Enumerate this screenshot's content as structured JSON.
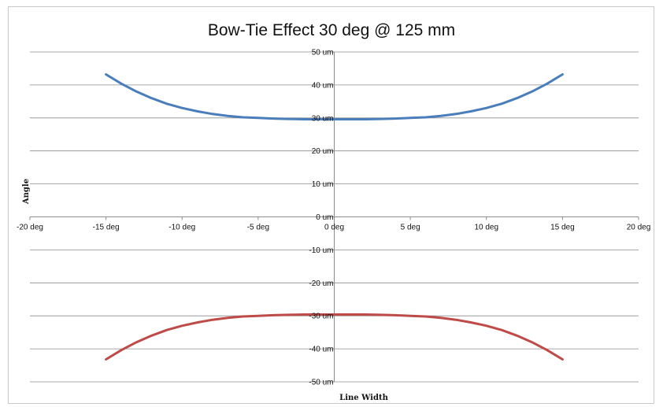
{
  "chart_data": {
    "type": "line",
    "title": "Bow-Tie Effect 30 deg @ 125 mm",
    "xlabel": "Line Width",
    "ylabel": "Angle",
    "xlim": [
      -20,
      20
    ],
    "ylim": [
      -50,
      50
    ],
    "x_ticks": [
      -20,
      -15,
      -10,
      -5,
      0,
      5,
      10,
      15,
      20
    ],
    "x_tick_labels": [
      "-20 deg",
      "-15 deg",
      "-10 deg",
      "-5 deg",
      "0 deg",
      "5 deg",
      "10 deg",
      "15 deg",
      "20 deg"
    ],
    "y_ticks": [
      50,
      40,
      30,
      20,
      10,
      0,
      -10,
      -20,
      -30,
      -40,
      -50
    ],
    "y_tick_labels": [
      "50 um",
      "40 um",
      "30 um",
      "20 um",
      "10 um",
      "0 um",
      "-10 um",
      "-20 um",
      "-30 um",
      "-40 um",
      "-50 um"
    ],
    "grid": "horizontal",
    "legend": "none",
    "series": [
      {
        "color": "#4a7ebb",
        "x": [
          -15,
          -14,
          -13,
          -12,
          -11,
          -10,
          -9,
          -8,
          -7,
          -6,
          -5,
          -4,
          -3,
          -2,
          -1,
          0,
          1,
          2,
          3,
          4,
          5,
          6,
          7,
          8,
          9,
          10,
          11,
          12,
          13,
          14,
          15
        ],
        "y": [
          43.2,
          40.4,
          38.0,
          36.0,
          34.3,
          33.0,
          32.0,
          31.2,
          30.6,
          30.2,
          30.0,
          29.8,
          29.7,
          29.6,
          29.6,
          29.6,
          29.6,
          29.6,
          29.7,
          29.8,
          30.0,
          30.2,
          30.6,
          31.2,
          32.0,
          33.0,
          34.3,
          36.0,
          38.0,
          40.4,
          43.2
        ]
      },
      {
        "color": "#be4b48",
        "x": [
          -15,
          -14,
          -13,
          -12,
          -11,
          -10,
          -9,
          -8,
          -7,
          -6,
          -5,
          -4,
          -3,
          -2,
          -1,
          0,
          1,
          2,
          3,
          4,
          5,
          6,
          7,
          8,
          9,
          10,
          11,
          12,
          13,
          14,
          15
        ],
        "y": [
          -43.2,
          -40.4,
          -38.0,
          -36.0,
          -34.3,
          -33.0,
          -32.0,
          -31.2,
          -30.6,
          -30.2,
          -30.0,
          -29.8,
          -29.7,
          -29.6,
          -29.6,
          -29.6,
          -29.6,
          -29.6,
          -29.7,
          -29.8,
          -30.0,
          -30.2,
          -30.6,
          -31.2,
          -32.0,
          -33.0,
          -34.3,
          -36.0,
          -38.0,
          -40.4,
          -43.2
        ]
      }
    ]
  },
  "colors": {
    "gridline": "#8c8c8c",
    "axis": "#8c8c8c",
    "frame_border": "#c8c8c8"
  }
}
